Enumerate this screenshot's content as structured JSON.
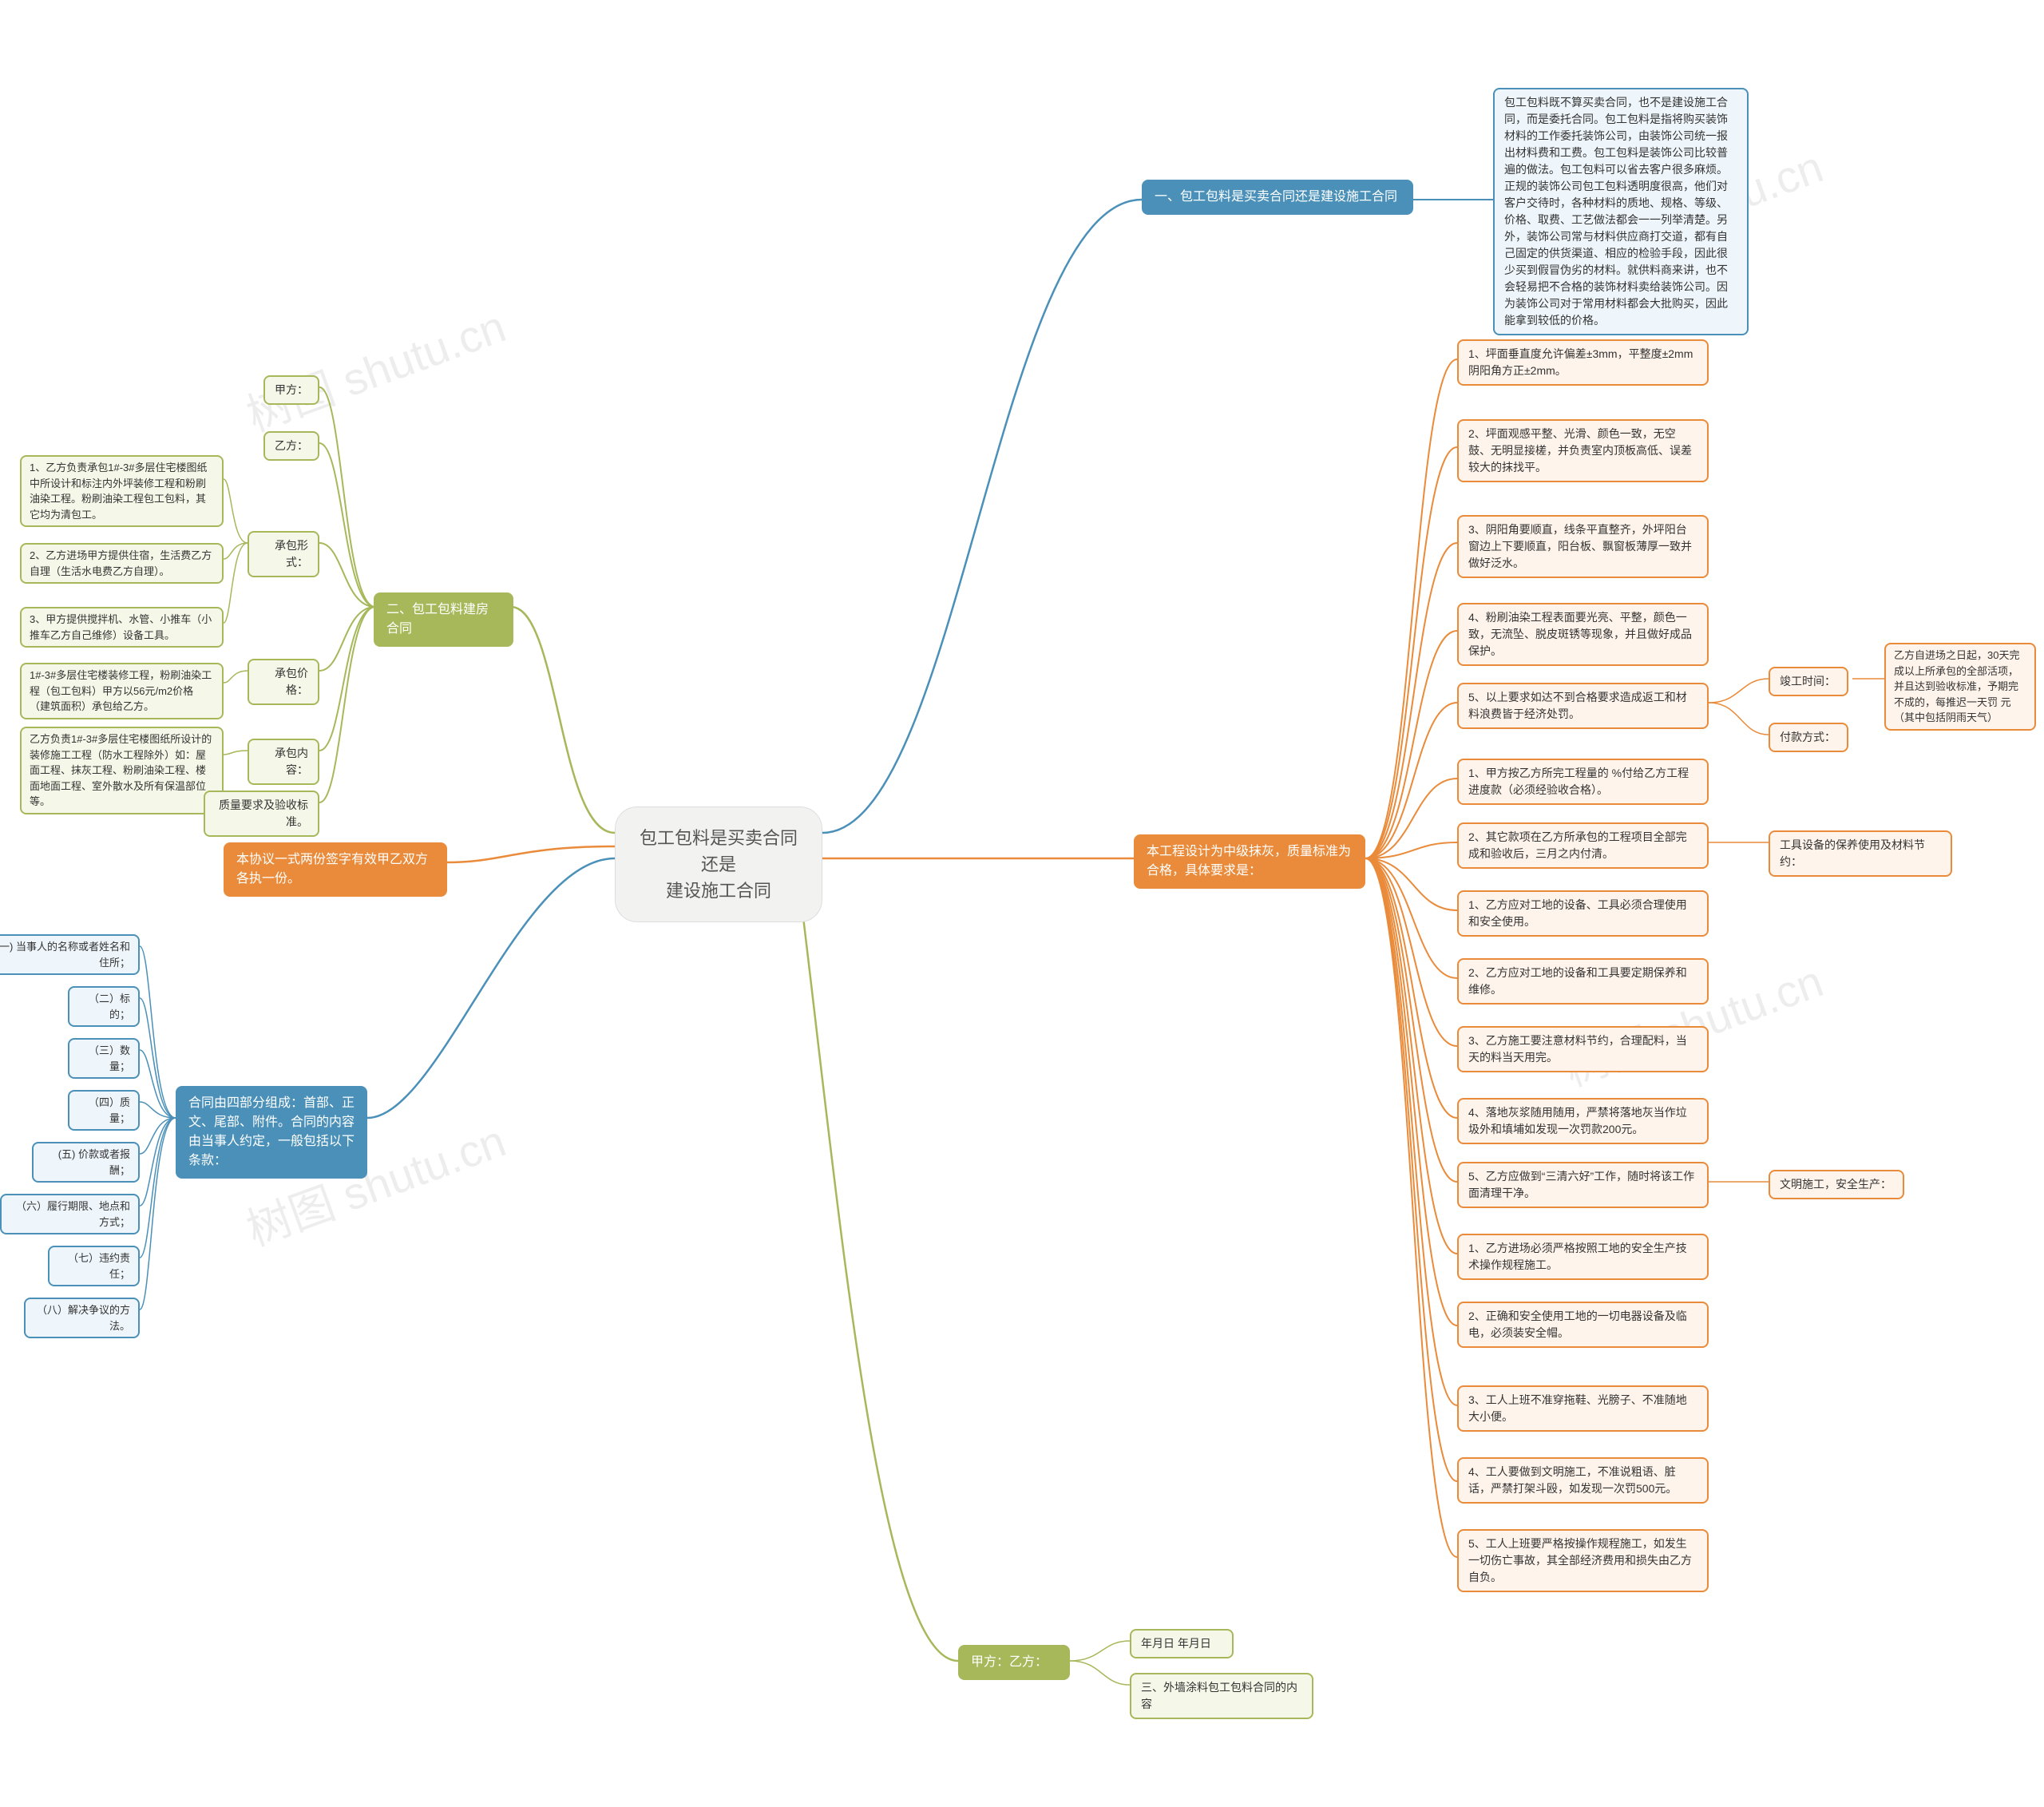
{
  "root": {
    "title": "包工包料是买卖合同还是\n建设施工合同"
  },
  "watermark": "树图 shutu.cn",
  "colors": {
    "blue": "#4a90b8",
    "orange": "#e98b3a",
    "olive": "#a6b85a",
    "root_bg": "#f2f2f0",
    "or_fill": "#fff4eb",
    "ol_fill": "#f5f8e8",
    "bl_fill": "#eef6fb",
    "bg": "#ffffff",
    "text": "#333333"
  },
  "branch1": {
    "title": "一、包工包料是买卖合同还是建设施工合同",
    "detail": "包工包料既不算买卖合同，也不是建设施工合同，而是委托合同。包工包料是指将购买装饰材料的工作委托装饰公司，由装饰公司统一报出材料费和工费。包工包料是装饰公司比较普遍的做法。包工包料可以省去客户很多麻烦。正规的装饰公司包工包料透明度很高，他们对客户交待时，各种材料的质地、规格、等级、价格、取费、工艺做法都会一一列举清楚。另外，装饰公司常与材料供应商打交道，都有自己固定的供货渠道、相应的检验手段，因此很少买到假冒伪劣的材料。就供料商来讲，也不会轻易把不合格的装饰材料卖给装饰公司。因为装饰公司对于常用材料都会大批购买，因此能拿到较低的价格。"
  },
  "branch2": {
    "title": "二、包工包料建房合同",
    "jia": "甲方：",
    "yi": "乙方：",
    "cb_form_label": "承包形式：",
    "cb_form_items": [
      "1、乙方负责承包1#-3#多层住宅楼图纸中所设计和标注内外坪装修工程和粉刷油染工程。粉刷油染工程包工包料，其它均为清包工。",
      "2、乙方进场甲方提供住宿，生活费乙方自理（生活水电费乙方自理）。",
      "3、甲方提供搅拌机、水管、小推车（小推车乙方自己维修）设备工具。"
    ],
    "cb_price_label": "承包价格：",
    "cb_price_text": "1#-3#多层住宅楼装修工程，粉刷油染工程（包工包料）甲方以56元/m2价格（建筑面积）承包给乙方。",
    "cb_content_label": "承包内容：",
    "cb_content_text": "乙方负责1#-3#多层住宅楼图纸所设计的装修施工工程（防水工程除外）如：屋面工程、抹灰工程、粉刷油染工程、楼面地面工程、室外散水及所有保温部位等。",
    "quality_label": "质量要求及验收标准。"
  },
  "branchQ": {
    "title": "本工程设计为中级抹灰，质量标准为合格，具体要求是：",
    "items": [
      "1、坪面垂直度允许偏差±3mm，平整度±2mm阴阳角方正±2mm。",
      "2、坪面观感平整、光滑、颜色一致，无空鼓、无明显接槎，并负责室内顶板高低、误差较大的抹找平。",
      "3、阴阳角要顺直，线条平直整齐，外坪阳台窗边上下要顺直，阳台板、飘窗板薄厚一致并做好泛水。",
      "4、粉刷油染工程表面要光亮、平整，颜色一致，无流坠、脱皮斑锈等现象，并且做好成品保护。",
      "5、以上要求如达不到合格要求造成返工和材料浪费皆于经济处罚。"
    ],
    "jungong_label": "竣工时间：",
    "jungong_text": "乙方自进场之日起，30天完成以上所承包的全部活项，并且达到验收标准，予期完不成的，每推迟一天罚 元（其中包括阴雨天气）",
    "fukuan_label": "付款方式：",
    "pay_items": [
      "1、甲方按乙方所完工程量的 %付给乙方工程进度款（必须经验收合格）。",
      "2、其它款项在乙方所承包的工程项目全部完成和验收后，三月之内付清。"
    ],
    "tool_label": "工具设备的保养使用及材料节约：",
    "tool_items": [
      "1、乙方应对工地的设备、工具必须合理使用和安全使用。",
      "2、乙方应对工地的设备和工具要定期保养和维修。",
      "3、乙方施工要注意材料节约，合理配料，当天的料当天用完。",
      "4、落地灰浆随用随用，严禁将落地灰当作垃圾外和填埔如发现一次罚款200元。",
      "5、乙方应做到“三清六好”工作，随时将该工作面清理干净。"
    ],
    "safety_label": "文明施工，安全生产：",
    "safety_items": [
      "1、乙方进场必须严格按照工地的安全生产技术操作规程施工。",
      "2、正确和安全使用工地的一切电器设备及临电，必须装安全帽。",
      "3、工人上班不准穿拖鞋、光膀子、不准随地大小便。",
      "4、工人要做到文明施工，不准说粗语、脏话，严禁打架斗殴，如发现一次罚500元。",
      "5、工人上班要严格按操作规程施工，如发生一切伤亡事故，其全部经济费用和损失由乙方自负。"
    ]
  },
  "branch3": {
    "title": "本协议一式两份签字有效甲乙双方各执一份。"
  },
  "branch4": {
    "title": "合同由四部分组成：首部、正文、尾部、附件。合同的内容由当事人约定，一般包括以下条款：",
    "items": [
      "(一) 当事人的名称或者姓名和住所；",
      "（二）标的；",
      "（三）数量；",
      "（四）质量；",
      "(五) 价款或者报酬；",
      "（六）履行期限、地点和方式；",
      "（七）违约责任；",
      "（八）解决争议的方法。"
    ]
  },
  "branch5": {
    "title": "甲方：乙方：",
    "date": "年月日 年月日",
    "sub": "三、外墙涂料包工包料合同的内容"
  }
}
